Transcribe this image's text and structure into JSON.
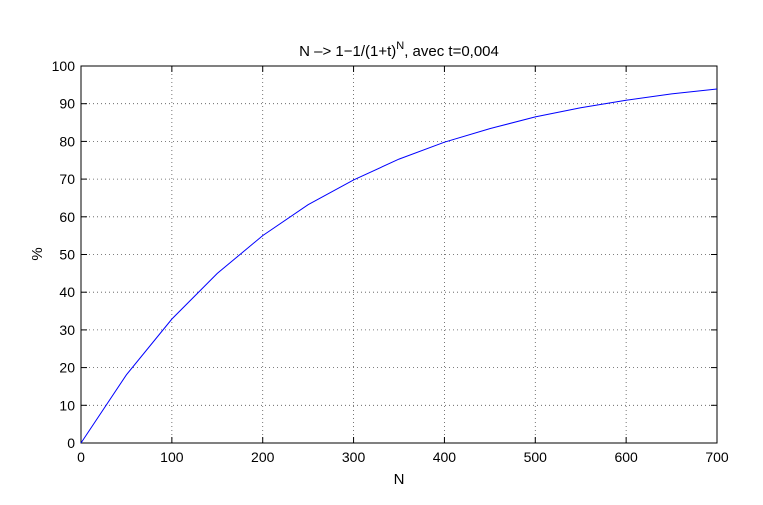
{
  "chart_data": {
    "type": "line",
    "title": {
      "main": "N –> 1−1/(1+t)",
      "superscript": "N",
      "suffix": ",  avec  t=0,004"
    },
    "xlabel": "N",
    "ylabel": "%",
    "xlim": [
      0,
      700
    ],
    "ylim": [
      0,
      100
    ],
    "xticks": [
      0,
      100,
      200,
      300,
      400,
      500,
      600,
      700
    ],
    "yticks": [
      0,
      10,
      20,
      30,
      40,
      50,
      60,
      70,
      80,
      90,
      100
    ],
    "grid": true,
    "series": [
      {
        "color": "#0000ff",
        "x": [
          0,
          50,
          100,
          150,
          200,
          250,
          300,
          350,
          400,
          450,
          500,
          550,
          600,
          650,
          700
        ],
        "y": [
          0,
          18.1,
          32.9,
          45.0,
          55.0,
          63.2,
          69.8,
          75.3,
          79.8,
          83.4,
          86.5,
          88.9,
          90.9,
          92.6,
          93.9
        ]
      }
    ]
  }
}
